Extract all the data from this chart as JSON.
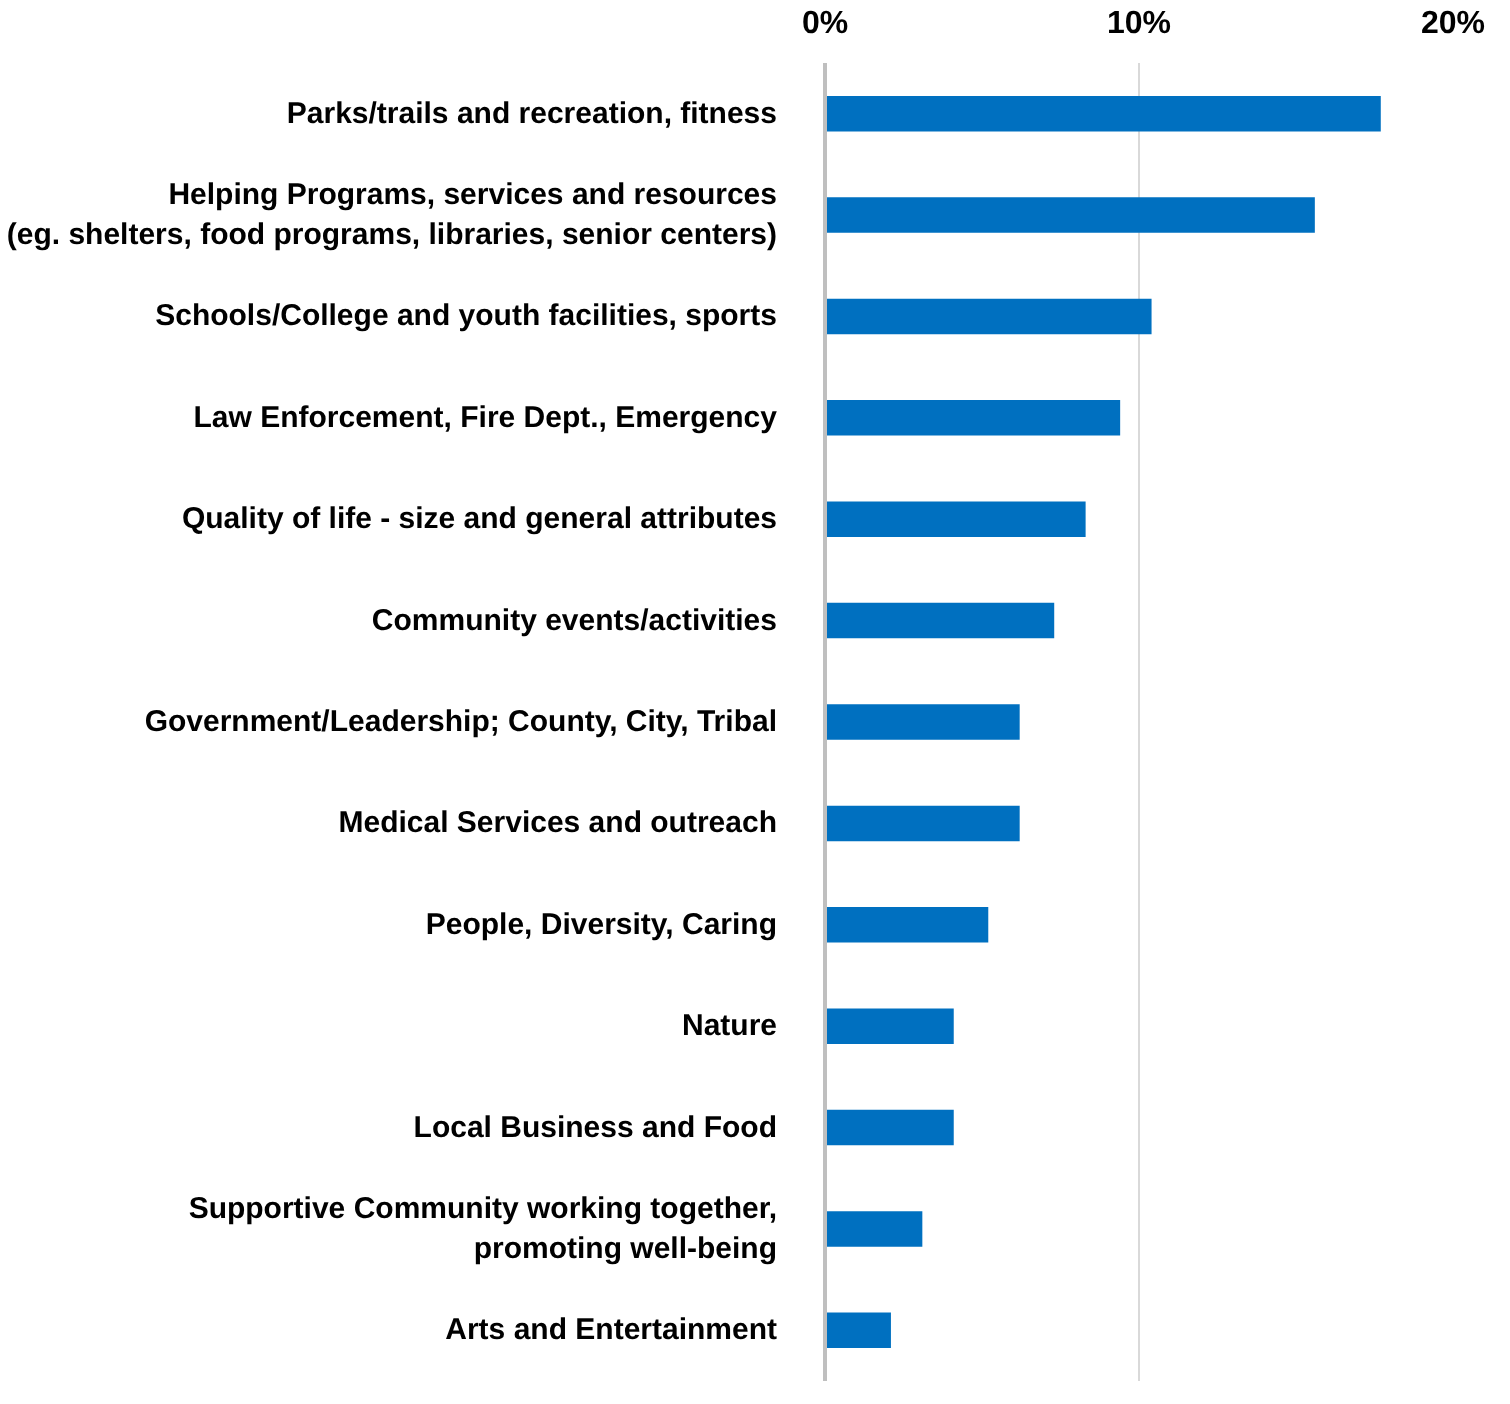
{
  "chart_data": {
    "type": "bar",
    "orientation": "horizontal",
    "categories": [
      "Parks/trails and recreation, fitness",
      "Helping Programs, services and resources\n(eg. shelters, food programs, libraries, senior centers)",
      "Schools/College and youth facilities, sports",
      "Law Enforcement, Fire Dept., Emergency",
      "Quality of life - size and general attributes",
      "Community events/activities",
      "Government/Leadership; County, City, Tribal",
      "Medical Services and outreach",
      "People, Diversity, Caring",
      "Nature",
      "Local Business and Food",
      "Supportive Community working together,\npromoting well-being",
      "Arts and Entertainment"
    ],
    "values": [
      17.7,
      15.6,
      10.4,
      9.4,
      8.3,
      7.3,
      6.2,
      6.2,
      5.2,
      4.1,
      4.1,
      3.1,
      2.1
    ],
    "color": "#0070c0",
    "xlim": [
      0,
      20
    ],
    "xticks": [
      {
        "value": 0,
        "label": "0%"
      },
      {
        "value": 10,
        "label": "10%"
      },
      {
        "value": 20,
        "label": "20%"
      }
    ],
    "grid": "x"
  }
}
